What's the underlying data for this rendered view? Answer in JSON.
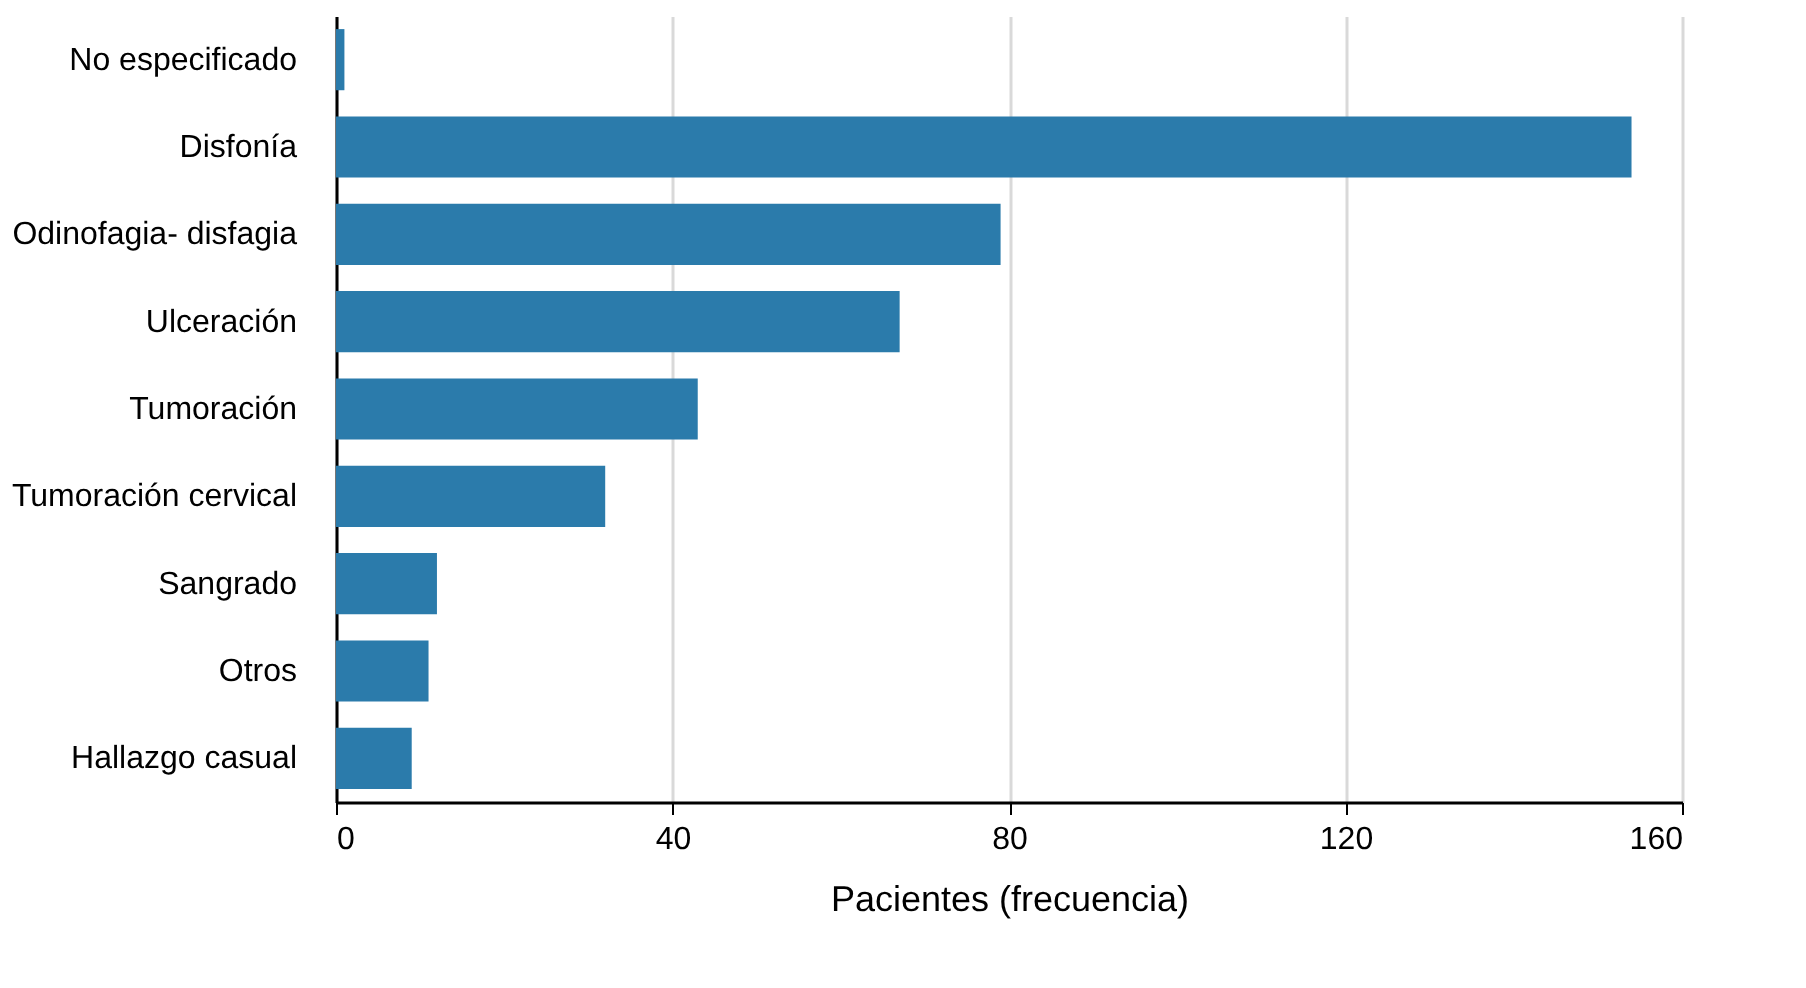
{
  "chart_data": {
    "type": "bar",
    "orientation": "horizontal",
    "xlabel": "Pacientes (frecuencia)",
    "categories": [
      "No especificado",
      "Disfonía",
      "Odinofagia- disfagia",
      "Ulceración",
      "Tumoración",
      "Tumoración cervical",
      "Sangrado",
      "Otros",
      "Hallazgo casual"
    ],
    "values": [
      1,
      154,
      79,
      67,
      43,
      32,
      12,
      11,
      9
    ],
    "color": "#2b7bab",
    "xlim": [
      0,
      160
    ],
    "xticks": [
      0,
      40,
      80,
      120,
      160
    ],
    "grid": "x"
  }
}
